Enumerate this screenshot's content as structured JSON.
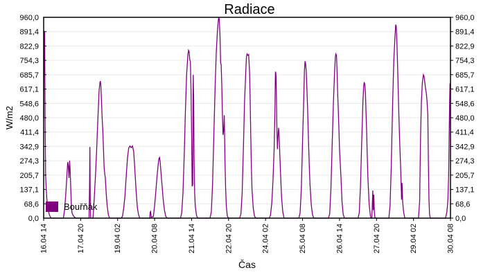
{
  "chart": {
    "title": "Radiace",
    "x_axis_title": "Čas",
    "y_axis_title": "W/m2",
    "legend": {
      "label": "Bouřňák",
      "color": "#800080"
    },
    "colors": {
      "line": "#800080",
      "grid": "#e9e9e9",
      "frame": "#000000",
      "background": "#ffffff",
      "text": "#000000"
    }
  },
  "chart_data": {
    "type": "line",
    "title": "Radiace",
    "xlabel": "Čas",
    "ylabel": "W/m2",
    "ylim": [
      0,
      960
    ],
    "xlim_hours": [
      0,
      330
    ],
    "x_start": "16.04 14:00",
    "x_end": "30.04 08:00",
    "grid": "horizontal",
    "legend_position": "bottom-left-inside",
    "y_tick_values": [
      0,
      68.6,
      137.1,
      205.7,
      274.3,
      342.9,
      411.4,
      480.0,
      548.6,
      617.1,
      685.7,
      754.3,
      822.9,
      891.4,
      960.0
    ],
    "y_tick_labels": [
      "0,0",
      "68,6",
      "137,1",
      "205,7",
      "274,3",
      "342,9",
      "411,4",
      "480,0",
      "548,6",
      "617,1",
      "685,7",
      "754,3",
      "822,9",
      "891,4",
      "960,0"
    ],
    "x_tick_hours": [
      0,
      30,
      60,
      90,
      120,
      150,
      180,
      210,
      240,
      270,
      300,
      330
    ],
    "x_tick_labels": [
      "16.04 14",
      "17.04 20",
      "19.04 02",
      "20.04 08",
      "21.04 14",
      "22.04 20",
      "24.04 02",
      "25.04 08",
      "26.04 14",
      "27.04 20",
      "29.04 02",
      "30.04 08"
    ],
    "series": [
      {
        "name": "Bouřňák",
        "color": "#800080",
        "units": "W/m2",
        "points_format": "[hours_since_16.04_14:00, W/m2]",
        "points": [
          [
            0,
            480
          ],
          [
            0.4,
            895
          ],
          [
            0.8,
            885
          ],
          [
            1.2,
            470
          ],
          [
            1.6,
            200
          ],
          [
            2,
            145
          ],
          [
            2.5,
            100
          ],
          [
            3,
            70
          ],
          [
            4,
            30
          ],
          [
            5,
            10
          ],
          [
            6,
            0
          ],
          [
            16,
            0
          ],
          [
            17,
            40
          ],
          [
            18,
            120
          ],
          [
            19,
            220
          ],
          [
            19.5,
            268
          ],
          [
            20,
            250
          ],
          [
            20.5,
            192
          ],
          [
            21,
            275
          ],
          [
            21.5,
            230
          ],
          [
            22,
            140
          ],
          [
            22.5,
            60
          ],
          [
            23,
            25
          ],
          [
            24,
            12
          ],
          [
            25,
            5
          ],
          [
            26,
            0
          ],
          [
            36.8,
            0
          ],
          [
            37.2,
            150
          ],
          [
            37.5,
            340
          ],
          [
            37.8,
            80
          ],
          [
            38.1,
            0
          ],
          [
            40,
            0
          ],
          [
            41,
            90
          ],
          [
            42,
            200
          ],
          [
            43,
            330
          ],
          [
            44,
            480
          ],
          [
            45,
            610
          ],
          [
            45.7,
            650
          ],
          [
            46,
            655
          ],
          [
            46.4,
            635
          ],
          [
            47,
            545
          ],
          [
            47.5,
            470
          ],
          [
            48,
            415
          ],
          [
            48.5,
            330
          ],
          [
            49,
            245
          ],
          [
            49.5,
            212
          ],
          [
            50,
            195
          ],
          [
            50.7,
            120
          ],
          [
            51.5,
            60
          ],
          [
            52.5,
            15
          ],
          [
            53.5,
            0
          ],
          [
            63,
            0
          ],
          [
            64,
            10
          ],
          [
            65,
            50
          ],
          [
            66,
            110
          ],
          [
            67,
            205
          ],
          [
            68,
            290
          ],
          [
            69,
            335
          ],
          [
            70,
            345
          ],
          [
            71,
            337
          ],
          [
            72,
            345
          ],
          [
            73,
            318
          ],
          [
            74,
            230
          ],
          [
            75,
            130
          ],
          [
            76,
            50
          ],
          [
            77,
            15
          ],
          [
            78,
            0
          ],
          [
            86,
            0
          ],
          [
            86.4,
            28
          ],
          [
            86.8,
            32
          ],
          [
            87.2,
            5
          ],
          [
            89,
            8
          ],
          [
            90,
            60
          ],
          [
            91,
            130
          ],
          [
            92,
            200
          ],
          [
            93,
            262
          ],
          [
            93.5,
            285
          ],
          [
            94,
            290
          ],
          [
            94.5,
            268
          ],
          [
            95,
            230
          ],
          [
            96,
            158
          ],
          [
            97,
            88
          ],
          [
            98,
            38
          ],
          [
            99,
            10
          ],
          [
            100,
            0
          ],
          [
            111,
            0
          ],
          [
            112,
            25
          ],
          [
            113,
            120
          ],
          [
            114,
            300
          ],
          [
            115,
            520
          ],
          [
            116,
            690
          ],
          [
            117,
            780
          ],
          [
            117.5,
            802
          ],
          [
            118,
            795
          ],
          [
            118.5,
            758
          ],
          [
            119,
            748
          ],
          [
            119.5,
            615
          ],
          [
            120,
            395
          ],
          [
            120.4,
            152
          ],
          [
            120.9,
            160
          ],
          [
            121.3,
            685
          ],
          [
            121.7,
            560
          ],
          [
            122,
            295
          ],
          [
            122.5,
            118
          ],
          [
            123,
            55
          ],
          [
            124,
            12
          ],
          [
            125,
            0
          ],
          [
            135,
            0
          ],
          [
            136,
            30
          ],
          [
            137,
            160
          ],
          [
            138,
            390
          ],
          [
            139,
            615
          ],
          [
            140,
            790
          ],
          [
            141,
            900
          ],
          [
            141.6,
            942
          ],
          [
            142,
            960
          ],
          [
            142.4,
            952
          ],
          [
            143,
            878
          ],
          [
            143.5,
            742
          ],
          [
            144,
            735
          ],
          [
            144.5,
            638
          ],
          [
            145,
            498
          ],
          [
            145.5,
            398
          ],
          [
            146,
            418
          ],
          [
            146.5,
            492
          ],
          [
            147,
            295
          ],
          [
            147.6,
            148
          ],
          [
            148.2,
            55
          ],
          [
            149,
            10
          ],
          [
            150,
            0
          ],
          [
            159,
            0
          ],
          [
            160,
            20
          ],
          [
            161,
            120
          ],
          [
            162,
            335
          ],
          [
            163,
            560
          ],
          [
            164,
            705
          ],
          [
            164.5,
            772
          ],
          [
            165,
            785
          ],
          [
            165.7,
            778
          ],
          [
            166.3,
            782
          ],
          [
            167,
            698
          ],
          [
            167.5,
            575
          ],
          [
            168,
            395
          ],
          [
            168.5,
            248
          ],
          [
            169,
            138
          ],
          [
            170,
            48
          ],
          [
            171,
            10
          ],
          [
            172,
            0
          ],
          [
            183,
            0
          ],
          [
            184,
            15
          ],
          [
            185,
            70
          ],
          [
            186,
            180
          ],
          [
            187,
            335
          ],
          [
            187.6,
            520
          ],
          [
            188,
            700
          ],
          [
            188.4,
            692
          ],
          [
            188.8,
            588
          ],
          [
            189.2,
            432
          ],
          [
            189.6,
            330
          ],
          [
            190,
            382
          ],
          [
            190.5,
            432
          ],
          [
            191,
            398
          ],
          [
            191.6,
            298
          ],
          [
            192.2,
            205
          ],
          [
            193,
            98
          ],
          [
            194,
            28
          ],
          [
            195,
            0
          ],
          [
            207,
            0
          ],
          [
            208,
            25
          ],
          [
            209,
            140
          ],
          [
            210,
            362
          ],
          [
            211,
            572
          ],
          [
            211.5,
            700
          ],
          [
            212,
            750
          ],
          [
            212.5,
            738
          ],
          [
            213,
            698
          ],
          [
            213.5,
            618
          ],
          [
            214,
            538
          ],
          [
            214.5,
            428
          ],
          [
            215,
            338
          ],
          [
            215.5,
            248
          ],
          [
            216,
            168
          ],
          [
            217,
            68
          ],
          [
            218,
            18
          ],
          [
            219,
            0
          ],
          [
            231,
            0
          ],
          [
            232,
            20
          ],
          [
            233,
            142
          ],
          [
            234,
            340
          ],
          [
            235,
            545
          ],
          [
            236,
            702
          ],
          [
            236.6,
            772
          ],
          [
            237,
            785
          ],
          [
            237.5,
            778
          ],
          [
            238,
            698
          ],
          [
            238.5,
            598
          ],
          [
            239,
            518
          ],
          [
            239.5,
            428
          ],
          [
            240,
            328
          ],
          [
            240.6,
            258
          ],
          [
            241.2,
            195
          ],
          [
            242,
            78
          ],
          [
            243,
            18
          ],
          [
            244,
            0
          ],
          [
            255,
            0
          ],
          [
            256,
            25
          ],
          [
            257,
            152
          ],
          [
            258,
            362
          ],
          [
            259,
            562
          ],
          [
            259.6,
            632
          ],
          [
            260,
            650
          ],
          [
            260.5,
            638
          ],
          [
            261,
            598
          ],
          [
            261.5,
            498
          ],
          [
            262,
            418
          ],
          [
            262.5,
            298
          ],
          [
            263,
            198
          ],
          [
            264,
            68
          ],
          [
            265,
            12
          ],
          [
            265.5,
            0
          ],
          [
            266.2,
            0
          ],
          [
            266.6,
            62
          ],
          [
            267,
            132
          ],
          [
            267.4,
            38
          ],
          [
            267.8,
            112
          ],
          [
            268.2,
            28
          ],
          [
            268.8,
            0
          ],
          [
            280,
            0
          ],
          [
            281,
            60
          ],
          [
            282,
            252
          ],
          [
            283,
            532
          ],
          [
            284,
            752
          ],
          [
            285,
            872
          ],
          [
            285.6,
            925
          ],
          [
            286,
            918
          ],
          [
            286.5,
            848
          ],
          [
            287,
            748
          ],
          [
            287.5,
            638
          ],
          [
            288,
            518
          ],
          [
            288.5,
            418
          ],
          [
            289,
            328
          ],
          [
            289.4,
            268
          ],
          [
            289.8,
            198
          ],
          [
            290.3,
            88
          ],
          [
            290.7,
            168
          ],
          [
            291.2,
            78
          ],
          [
            292,
            28
          ],
          [
            293,
            0
          ],
          [
            304,
            0
          ],
          [
            305,
            80
          ],
          [
            305.7,
            380
          ],
          [
            306.4,
            555
          ],
          [
            307.2,
            648
          ],
          [
            308,
            685
          ],
          [
            308.6,
            678
          ],
          [
            309.2,
            648
          ],
          [
            309.8,
            618
          ],
          [
            310.4,
            598
          ],
          [
            311,
            558
          ],
          [
            311.6,
            495
          ],
          [
            312,
            295
          ],
          [
            312.5,
            95
          ],
          [
            313,
            18
          ],
          [
            313.6,
            0
          ],
          [
            326,
            0
          ],
          [
            327,
            28
          ],
          [
            327.6,
            62
          ],
          [
            328,
            98
          ],
          [
            328.5,
            198
          ],
          [
            329,
            418
          ],
          [
            329.3,
            558
          ],
          [
            329.6,
            642
          ],
          [
            330,
            648
          ]
        ]
      }
    ]
  }
}
